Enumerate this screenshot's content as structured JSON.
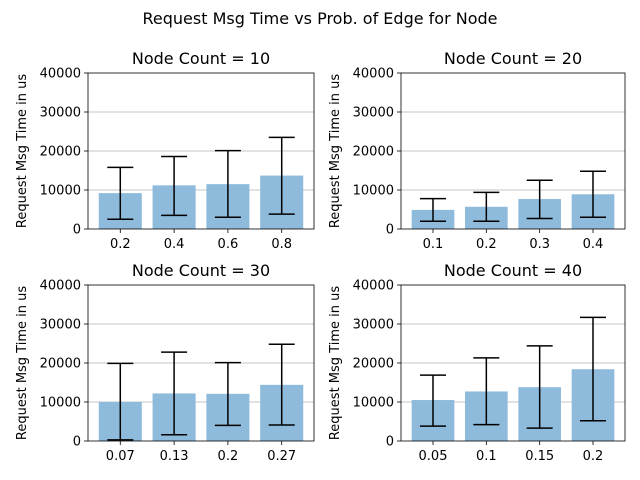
{
  "suptitle": "Request Msg Time vs Prob. of Edge for Node",
  "colors": {
    "bar": "#8ebadb",
    "error": "#000000",
    "grid": "#b0b0b0"
  },
  "chart_data": [
    {
      "type": "bar",
      "title": "Node Count = 10",
      "ylabel": "Request Msg Time in us",
      "ylim": [
        0,
        40000
      ],
      "yticks": [
        0,
        10000,
        20000,
        30000,
        40000
      ],
      "grid": "y",
      "categories": [
        "0.2",
        "0.4",
        "0.6",
        "0.8"
      ],
      "values": [
        9200,
        11200,
        11500,
        13700
      ],
      "error_low": [
        2500,
        3500,
        3000,
        3800
      ],
      "error_high": [
        15800,
        18600,
        20100,
        23500
      ]
    },
    {
      "type": "bar",
      "title": "Node Count = 20",
      "ylabel": "Request Msg Time in us",
      "ylim": [
        0,
        40000
      ],
      "yticks": [
        0,
        10000,
        20000,
        30000,
        40000
      ],
      "grid": "y",
      "categories": [
        "0.1",
        "0.2",
        "0.3",
        "0.4"
      ],
      "values": [
        4900,
        5700,
        7700,
        8900
      ],
      "error_low": [
        2000,
        2000,
        2700,
        3000
      ],
      "error_high": [
        7800,
        9400,
        12500,
        14800
      ]
    },
    {
      "type": "bar",
      "title": "Node Count = 30",
      "ylabel": "Request Msg Time in us",
      "ylim": [
        0,
        40000
      ],
      "yticks": [
        0,
        10000,
        20000,
        30000,
        40000
      ],
      "grid": "y",
      "categories": [
        "0.07",
        "0.13",
        "0.2",
        "0.27"
      ],
      "values": [
        10000,
        12200,
        12100,
        14400
      ],
      "error_low": [
        300,
        1600,
        4000,
        4100
      ],
      "error_high": [
        19900,
        22800,
        20100,
        24800
      ]
    },
    {
      "type": "bar",
      "title": "Node Count = 40",
      "ylabel": "Request Msg Time in us",
      "ylim": [
        0,
        40000
      ],
      "yticks": [
        0,
        10000,
        20000,
        30000,
        40000
      ],
      "grid": "y",
      "categories": [
        "0.05",
        "0.1",
        "0.15",
        "0.2"
      ],
      "values": [
        10500,
        12700,
        13800,
        18400
      ],
      "error_low": [
        3800,
        4200,
        3300,
        5200
      ],
      "error_high": [
        16900,
        21300,
        24400,
        31700
      ]
    }
  ]
}
